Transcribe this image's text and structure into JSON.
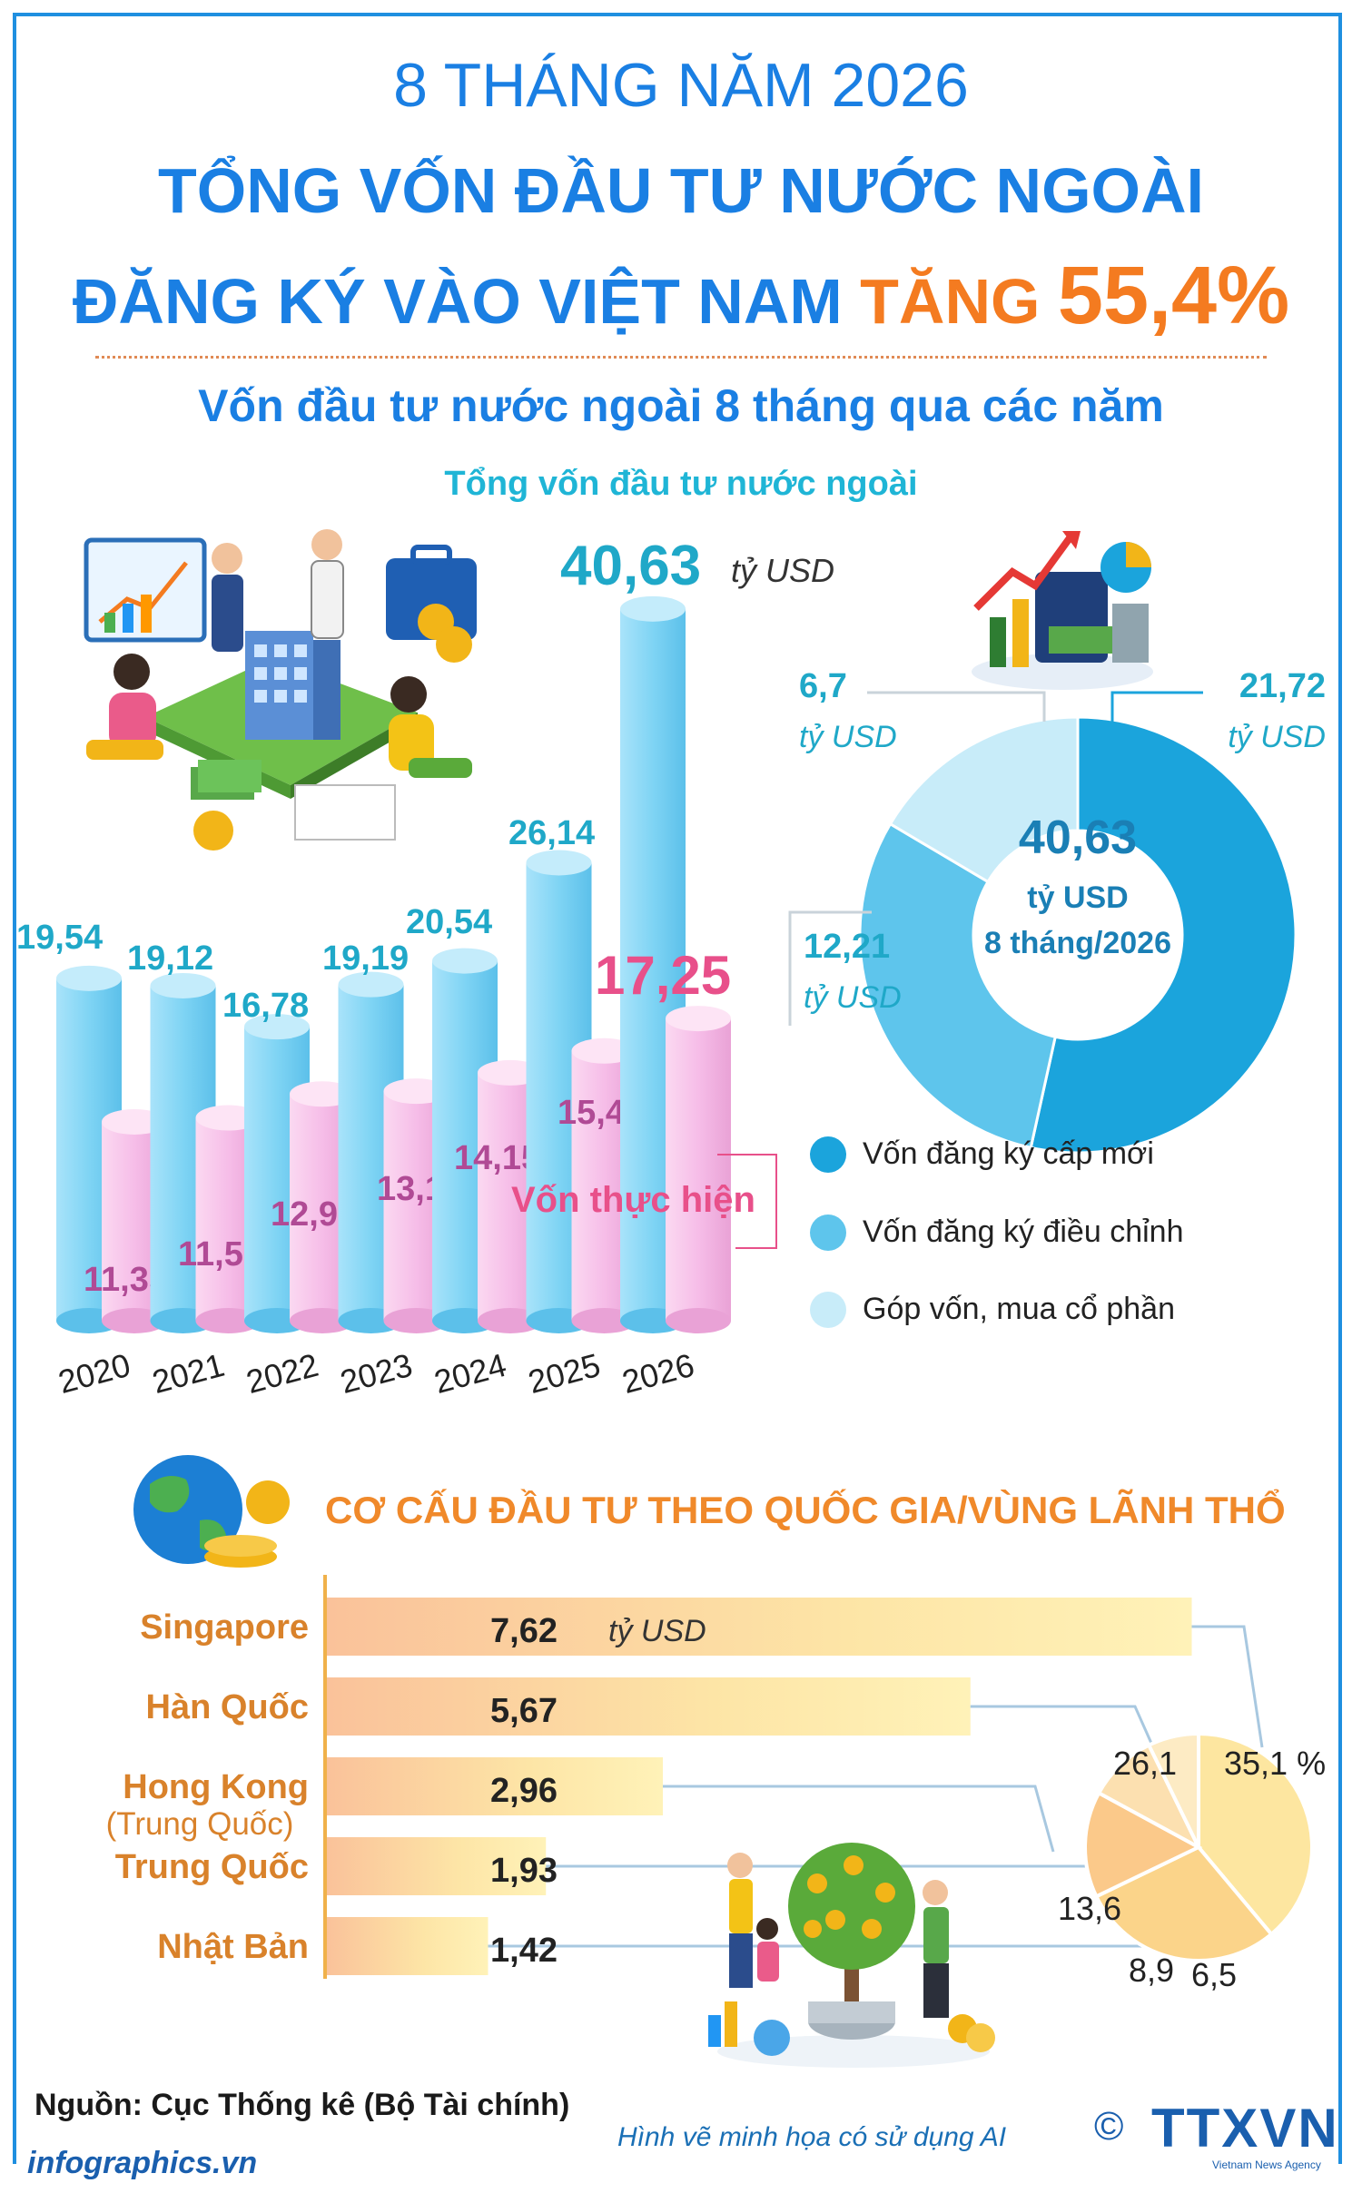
{
  "header": {
    "line1": "8 THÁNG NĂM 2026",
    "line2": "TỔNG VỐN ĐẦU TƯ NƯỚC NGOÀI",
    "line3_a": "ĐĂNG KÝ VÀO VIỆT NAM ",
    "line3_b": "TĂNG ",
    "line3_c": "55,4%"
  },
  "subtitle": "Vốn đầu tư nước ngoài 8 tháng qua các năm",
  "bar_chart_label": "Tổng vốn đầu tư nước ngoài",
  "total_callout": {
    "value": "40,63",
    "unit": "tỷ USD"
  },
  "legend": [
    "Vốn đăng ký cấp mới",
    "Vốn đăng ký điều chỉnh",
    "Góp vốn, mua cổ phần"
  ],
  "donut_center": {
    "value": "40,63",
    "unit": "tỷ USD",
    "period": "8 tháng/2026"
  },
  "donut_labels": [
    {
      "value": "21,72",
      "unit": "tỷ USD"
    },
    {
      "value": "12,21",
      "unit": "tỷ USD"
    },
    {
      "value": "6,7",
      "unit": "tỷ USD"
    }
  ],
  "section2_title": "CƠ CẤU ĐẦU TƯ THEO QUỐC GIA/VÙNG LÃNH THỔ",
  "country_unit": "tỷ USD",
  "pie_pct_suffix": " %",
  "footer": {
    "source": "Nguồn: Cục Thống kê (Bộ Tài chính)",
    "ai_note": "Hình vẽ minh họa có sử dụng AI",
    "copyright": "©",
    "logo": "TTXVN",
    "logo_sub": "Vietnam News Agency",
    "site": "infographics.vn"
  },
  "colors": {
    "title_blue": "#1a7fe3",
    "accent_orange": "#f47b20",
    "registered_blue": "#7fd4f4",
    "disbursed_pink": "#f6bde8",
    "disbursed_label": "#e8508a",
    "new_capital": "#1ba4dc",
    "adjusted_capital": "#5ec5ec",
    "share_purchase": "#c8ecf9",
    "country_name": "#d9822b"
  },
  "chart_data": [
    {
      "type": "bar",
      "title": "Vốn đầu tư nước ngoài 8 tháng qua các năm",
      "categories": [
        "2020",
        "2021",
        "2022",
        "2023",
        "2024",
        "2025",
        "2026"
      ],
      "series": [
        {
          "name": "Tổng vốn đầu tư nước ngoài",
          "values": [
            19.54,
            19.12,
            16.78,
            19.19,
            20.54,
            26.14,
            40.63
          ],
          "labels": [
            "19,54",
            "19,12",
            "16,78",
            "19,19",
            "20,54",
            "26,14",
            "40,63"
          ]
        },
        {
          "name": "Vốn thực hiện",
          "values": [
            11.35,
            11.58,
            12.94,
            13.1,
            14.15,
            15.4,
            17.25
          ],
          "labels": [
            "11,35",
            "11,58",
            "12,94",
            "13,1",
            "14,15",
            "15,4",
            "17,25"
          ]
        }
      ],
      "ylabel": "tỷ USD",
      "ylim": [
        0,
        42
      ]
    },
    {
      "type": "pie",
      "variant": "donut",
      "labels": [
        "Vốn đăng ký cấp mới",
        "Vốn đăng ký điều chỉnh",
        "Góp vốn, mua cổ phần"
      ],
      "values": [
        21.72,
        12.21,
        6.7
      ],
      "total": 40.63,
      "unit": "tỷ USD"
    },
    {
      "type": "bar",
      "orientation": "horizontal",
      "title": "CƠ CẤU ĐẦU TƯ THEO QUỐC GIA/VÙNG LÃNH THỔ",
      "categories": [
        "Singapore",
        "Hàn Quốc",
        "Hong Kong",
        "Trung Quốc",
        "Nhật Bản"
      ],
      "category_sublabels": [
        "",
        "",
        "(Trung Quốc)",
        "",
        ""
      ],
      "values": [
        7.62,
        5.67,
        2.96,
        1.93,
        1.42
      ],
      "labels": [
        "7,62",
        "5,67",
        "2,96",
        "1,93",
        "1,42"
      ],
      "unit": "tỷ USD"
    },
    {
      "type": "pie",
      "categories": [
        "Singapore",
        "Hàn Quốc",
        "Hong Kong",
        "Trung Quốc",
        "Nhật Bản"
      ],
      "values": [
        35.1,
        26.1,
        13.6,
        8.9,
        6.5
      ],
      "labels": [
        "35,1",
        "26,1",
        "13,6",
        "8,9",
        "6,5"
      ],
      "unit": "%"
    }
  ]
}
